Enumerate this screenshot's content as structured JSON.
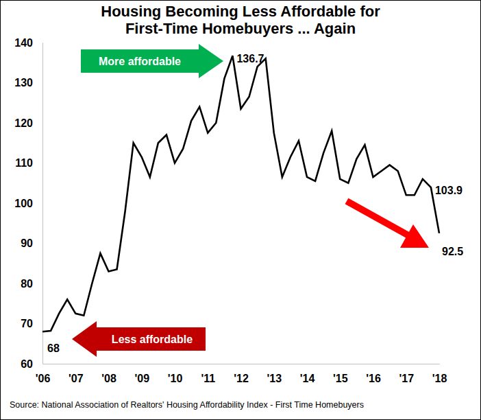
{
  "chart_data": {
    "type": "line",
    "title": "Housing Becoming Less Affordable for First-Time Homebuyers ... Again",
    "source": "Source: National Association of Realtors' Housing Affordability Index - First Time Homebuyers",
    "annotations": [
      {
        "text": "More affordable",
        "color": "#00b050"
      },
      {
        "text": "Less affordable",
        "color": "#c00000"
      }
    ],
    "x": [
      2006,
      2006.25,
      2006.5,
      2006.75,
      2007,
      2007.25,
      2007.5,
      2007.75,
      2008,
      2008.25,
      2008.5,
      2008.75,
      2009,
      2009.25,
      2009.5,
      2009.75,
      2010,
      2010.25,
      2010.5,
      2010.75,
      2011,
      2011.25,
      2011.5,
      2011.75,
      2012,
      2012.25,
      2012.5,
      2012.75,
      2013,
      2013.25,
      2013.5,
      2013.75,
      2014,
      2014.25,
      2014.5,
      2014.75,
      2015,
      2015.25,
      2015.5,
      2015.75,
      2016,
      2016.25,
      2016.5,
      2016.75,
      2017,
      2017.25,
      2017.5,
      2017.75,
      2018
    ],
    "values": [
      68,
      68.2,
      72.5,
      76,
      72.5,
      72,
      80,
      87.5,
      83,
      83.5,
      98,
      115,
      111.5,
      106.5,
      115,
      117,
      110,
      113.5,
      120.5,
      124,
      117.5,
      120,
      131,
      136.7,
      123.5,
      126.5,
      134,
      136,
      117.5,
      106.5,
      111.5,
      115.5,
      106.5,
      105.5,
      112.5,
      118,
      106,
      105,
      111,
      114.5,
      106.5,
      108,
      109.5,
      108,
      102,
      102,
      106,
      103.9,
      92.5
    ],
    "value_labels": [
      "68",
      null,
      null,
      null,
      null,
      null,
      null,
      null,
      null,
      null,
      null,
      null,
      null,
      null,
      null,
      null,
      null,
      null,
      null,
      null,
      null,
      null,
      null,
      "136.7",
      null,
      null,
      null,
      null,
      null,
      null,
      null,
      null,
      null,
      null,
      null,
      null,
      null,
      null,
      null,
      null,
      null,
      null,
      null,
      null,
      null,
      null,
      null,
      "103.9",
      "92.5"
    ],
    "color": "#000000",
    "xlim": [
      2006,
      2018
    ],
    "xticks": [
      {
        "value": 2006,
        "label": "'06"
      },
      {
        "value": 2007,
        "label": "'07"
      },
      {
        "value": 2008,
        "label": "'08"
      },
      {
        "value": 2009,
        "label": "'09"
      },
      {
        "value": 2010,
        "label": "'10"
      },
      {
        "value": 2011,
        "label": "'11"
      },
      {
        "value": 2012,
        "label": "'12"
      },
      {
        "value": 2013,
        "label": "'13"
      },
      {
        "value": 2014,
        "label": "'14"
      },
      {
        "value": 2015,
        "label": "'15"
      },
      {
        "value": 2016,
        "label": "'16"
      },
      {
        "value": 2017,
        "label": "'17"
      },
      {
        "value": 2018,
        "label": "'18"
      }
    ],
    "ylim": [
      60,
      140
    ],
    "yticks": [
      60,
      70,
      80,
      90,
      100,
      110,
      120,
      130,
      140
    ],
    "grid": false
  }
}
